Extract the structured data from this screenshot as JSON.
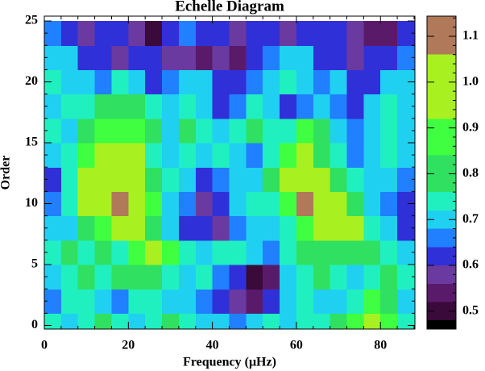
{
  "chart_data": {
    "type": "heatmap",
    "title": "Echelle Diagram",
    "x_label": "Frequency (μHz)",
    "y_label": "Order",
    "x": [
      2,
      6,
      10,
      14,
      18,
      22,
      26,
      30,
      34,
      38,
      42,
      46,
      50,
      54,
      58,
      62,
      66,
      70,
      74,
      78,
      82,
      86
    ],
    "y": [
      0,
      2,
      4,
      6,
      8,
      10,
      12,
      14,
      16,
      18,
      20,
      22,
      24
    ],
    "z": [
      [
        0.75,
        0.7,
        0.72,
        0.78,
        0.72,
        0.7,
        0.75,
        0.8,
        0.72,
        0.7,
        0.7,
        0.65,
        0.68,
        0.72,
        0.7,
        0.75,
        0.72,
        0.78,
        0.85,
        1.0,
        0.9,
        0.75
      ],
      [
        0.65,
        0.72,
        0.75,
        0.7,
        0.65,
        0.72,
        0.75,
        0.7,
        0.68,
        0.65,
        0.6,
        0.56,
        0.55,
        0.6,
        0.68,
        0.72,
        0.7,
        0.68,
        0.72,
        0.85,
        0.8,
        0.7
      ],
      [
        0.7,
        0.75,
        0.8,
        0.72,
        0.78,
        0.82,
        0.8,
        0.75,
        0.7,
        0.72,
        0.65,
        0.6,
        0.5,
        0.55,
        0.68,
        0.75,
        0.78,
        0.72,
        0.7,
        0.75,
        0.8,
        0.72
      ],
      [
        0.72,
        0.8,
        0.75,
        0.82,
        0.75,
        0.88,
        0.95,
        0.85,
        0.75,
        0.7,
        0.72,
        0.75,
        0.68,
        0.65,
        0.72,
        0.8,
        0.82,
        0.8,
        0.82,
        0.78,
        0.72,
        0.7
      ],
      [
        0.7,
        0.68,
        0.8,
        0.85,
        0.92,
        1.0,
        0.8,
        0.68,
        0.6,
        0.62,
        0.58,
        0.65,
        0.7,
        0.68,
        0.75,
        0.85,
        0.95,
        0.92,
        1.0,
        0.75,
        0.68,
        0.6
      ],
      [
        0.65,
        0.72,
        1.05,
        0.98,
        1.08,
        0.98,
        0.85,
        0.7,
        0.65,
        0.58,
        0.62,
        0.68,
        0.72,
        0.75,
        0.9,
        1.08,
        1.0,
        0.95,
        0.8,
        0.7,
        0.65,
        0.6
      ],
      [
        0.6,
        0.75,
        0.95,
        1.0,
        0.97,
        0.98,
        0.8,
        0.72,
        0.68,
        0.6,
        0.65,
        0.7,
        0.7,
        0.8,
        0.95,
        0.98,
        0.95,
        0.8,
        0.72,
        0.68,
        0.7,
        0.65
      ],
      [
        0.68,
        0.72,
        0.88,
        0.98,
        0.95,
        0.92,
        0.75,
        0.7,
        0.75,
        0.68,
        0.72,
        0.7,
        0.65,
        0.72,
        0.9,
        0.95,
        0.8,
        0.72,
        0.65,
        0.7,
        0.75,
        0.7
      ],
      [
        0.72,
        0.7,
        0.8,
        0.85,
        0.9,
        0.85,
        0.78,
        0.7,
        0.8,
        0.75,
        0.68,
        0.72,
        0.78,
        0.72,
        0.75,
        0.9,
        0.8,
        0.7,
        0.65,
        0.7,
        0.72,
        0.68
      ],
      [
        0.7,
        0.75,
        0.72,
        0.78,
        0.82,
        0.8,
        0.72,
        0.68,
        0.75,
        0.7,
        0.6,
        0.65,
        0.72,
        0.68,
        0.6,
        0.66,
        0.7,
        0.65,
        0.62,
        0.68,
        0.72,
        0.7
      ],
      [
        0.72,
        0.7,
        0.68,
        0.65,
        0.72,
        0.7,
        0.62,
        0.65,
        0.7,
        0.68,
        0.63,
        0.6,
        0.66,
        0.7,
        0.72,
        0.68,
        0.65,
        0.7,
        0.6,
        0.62,
        0.7,
        0.68
      ],
      [
        0.7,
        0.68,
        0.62,
        0.6,
        0.58,
        0.6,
        0.62,
        0.58,
        0.56,
        0.55,
        0.56,
        0.53,
        0.6,
        0.65,
        0.7,
        0.68,
        0.62,
        0.6,
        0.58,
        0.62,
        0.6,
        0.65
      ],
      [
        0.65,
        0.6,
        0.58,
        0.62,
        0.6,
        0.56,
        0.5,
        0.6,
        0.65,
        0.62,
        0.6,
        0.58,
        0.6,
        0.62,
        0.58,
        0.6,
        0.62,
        0.6,
        0.58,
        0.55,
        0.53,
        0.6
      ]
    ],
    "xlim": [
      0,
      88.2
    ],
    "ylim": [
      -0.3,
      25.4
    ],
    "xticks": [
      0,
      20,
      40,
      60,
      80
    ],
    "yticks": [
      0,
      5,
      10,
      15,
      20,
      25
    ],
    "clim": [
      0.461,
      1.144
    ],
    "cticks": [
      0.5,
      0.6,
      0.7,
      0.8,
      0.9,
      {
        "value": 1,
        "label": "1.0"
      },
      1.1
    ],
    "bounds": [
      0.48,
      0.52,
      0.56,
      0.6,
      0.64,
      0.68,
      0.72,
      0.76,
      0.84,
      0.92,
      1.06
    ],
    "colors": [
      "#000000",
      "#3a0a3a",
      "#5a1a6a",
      "#6a3aa0",
      "#3030d8",
      "#2080ff",
      "#20d0f0",
      "#20f0c0",
      "#30e060",
      "#40ff40",
      "#a8f020",
      "#b07a5a"
    ]
  }
}
